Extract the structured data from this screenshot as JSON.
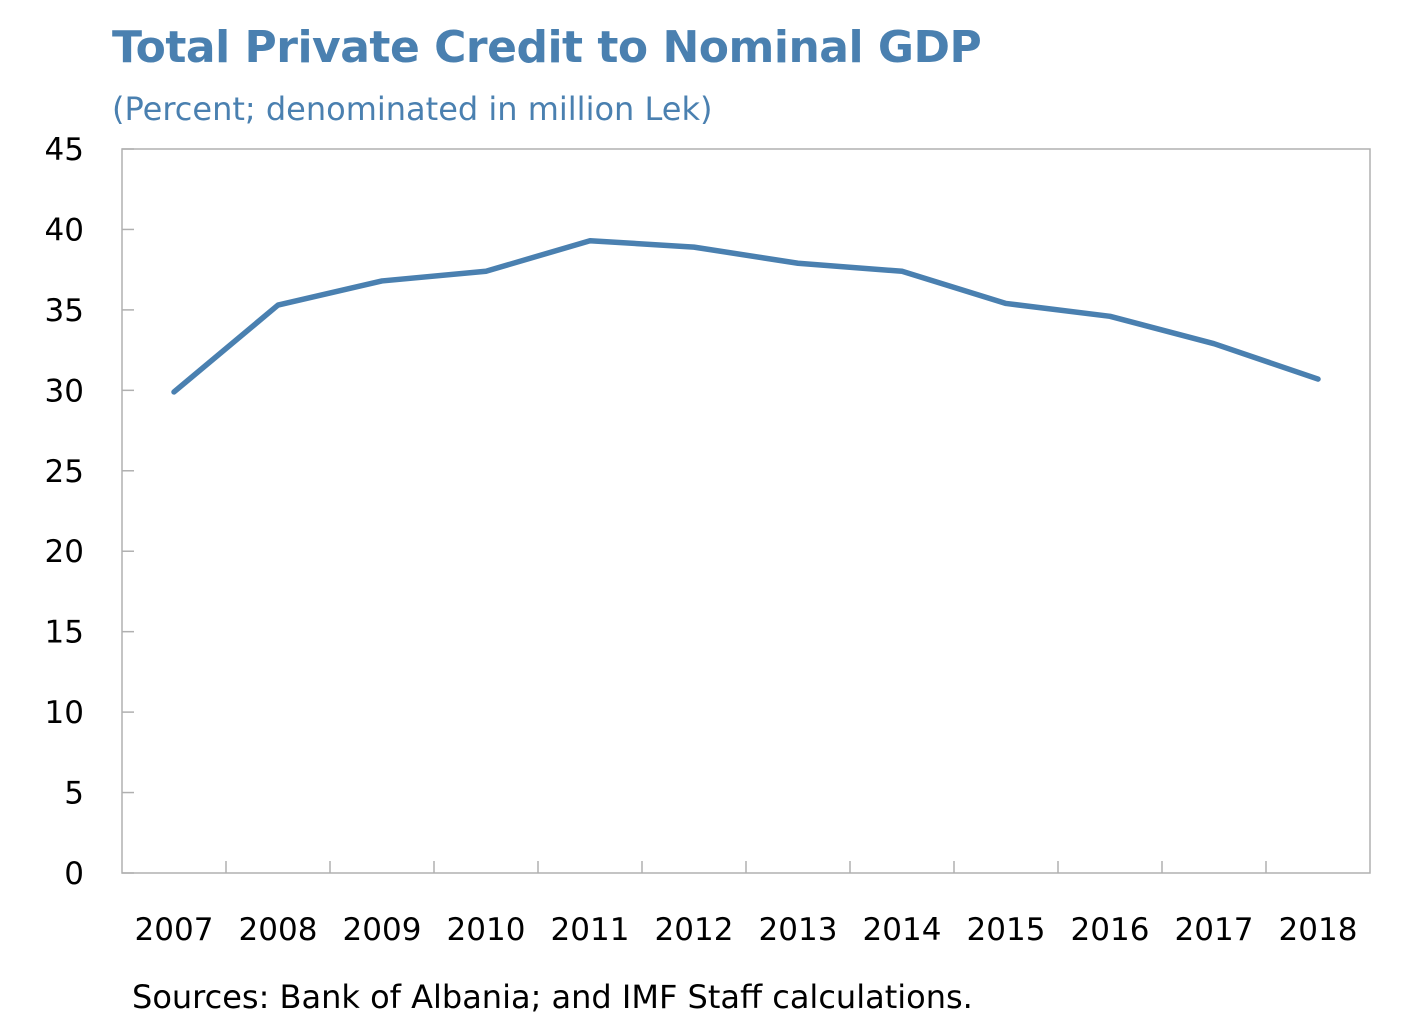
{
  "chart_data": {
    "type": "line",
    "title": "Total Private Credit to Nominal GDP",
    "subtitle": "(Percent; denominated in million Lek)",
    "xlabel": "",
    "ylabel": "",
    "x": [
      "2007",
      "2008",
      "2009",
      "2010",
      "2011",
      "2012",
      "2013",
      "2014",
      "2015",
      "2016",
      "2017",
      "2018"
    ],
    "series": [
      {
        "name": "Total Private Credit to Nominal GDP",
        "color": "#4a80b0",
        "values": [
          29.9,
          35.3,
          36.8,
          37.4,
          39.3,
          38.9,
          37.9,
          37.4,
          35.4,
          34.6,
          32.9,
          30.7
        ]
      }
    ],
    "ylim": [
      0,
      45
    ],
    "yticks": [
      0,
      5,
      10,
      15,
      20,
      25,
      30,
      35,
      40,
      45
    ],
    "grid": false,
    "legend": "none",
    "source": "Sources: Bank of Albania; and IMF Staff calculations."
  }
}
